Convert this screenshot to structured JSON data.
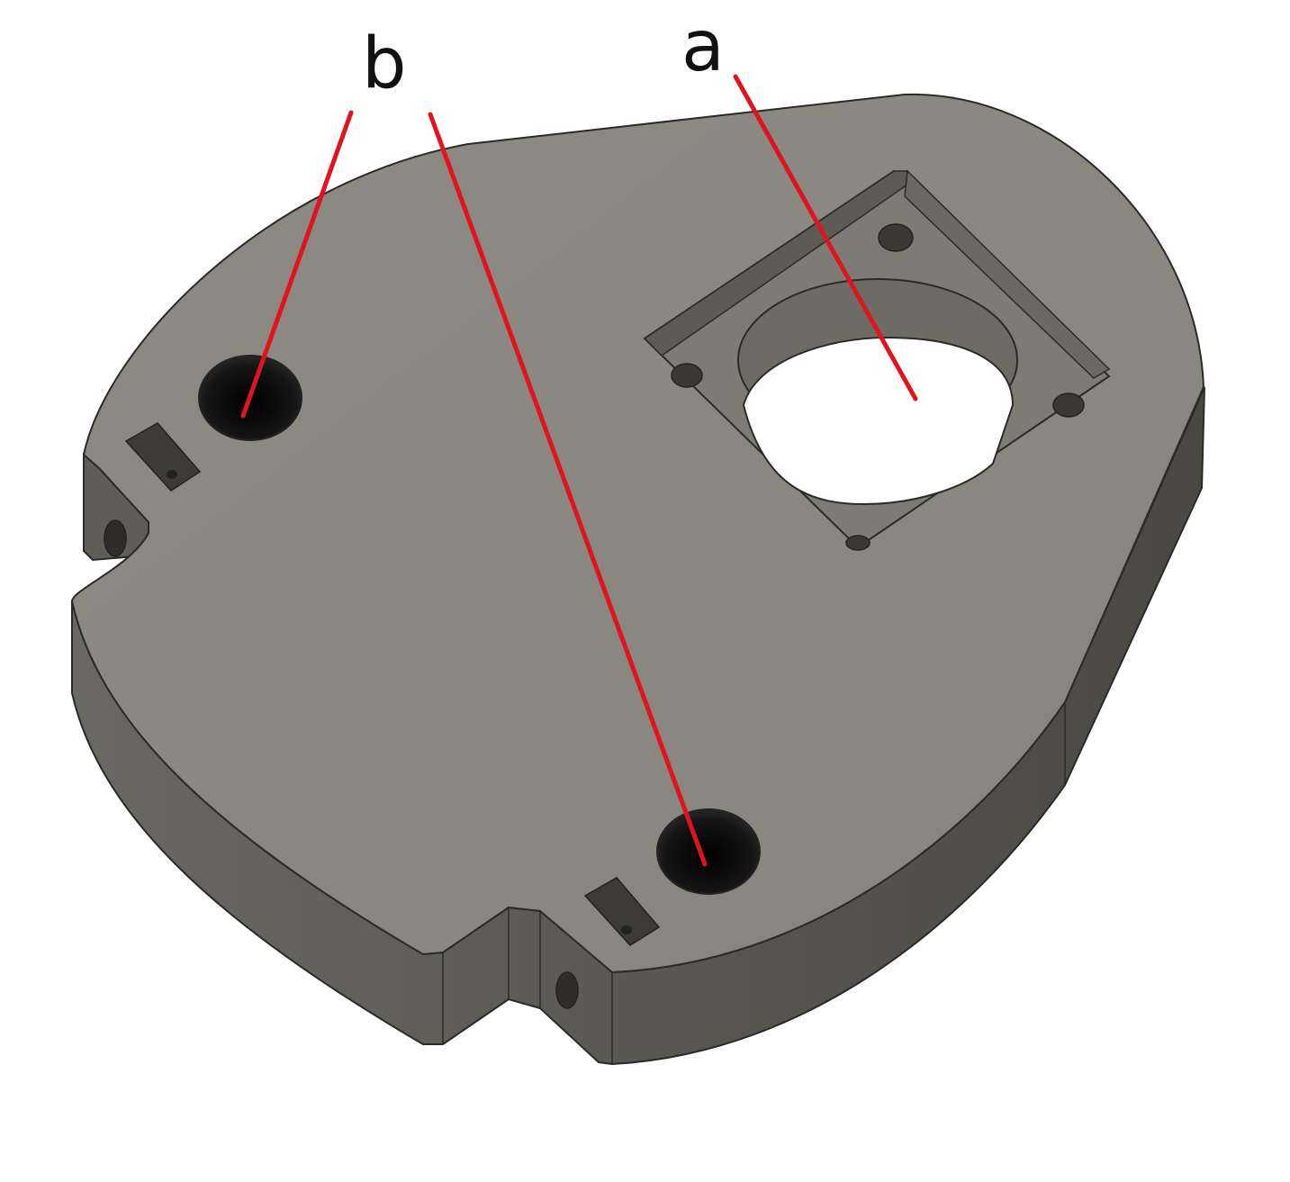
{
  "labels": {
    "a": "a",
    "b": "b"
  },
  "colors": {
    "plate_top": "#8b8780",
    "plate_side": "#5c5a54",
    "plate_side_dark": "#4c4a45",
    "pocket_wall": "#6f6c66",
    "hole_dark": "#161616",
    "leader_line": "#e0141e",
    "outline": "#2a2a2a"
  }
}
